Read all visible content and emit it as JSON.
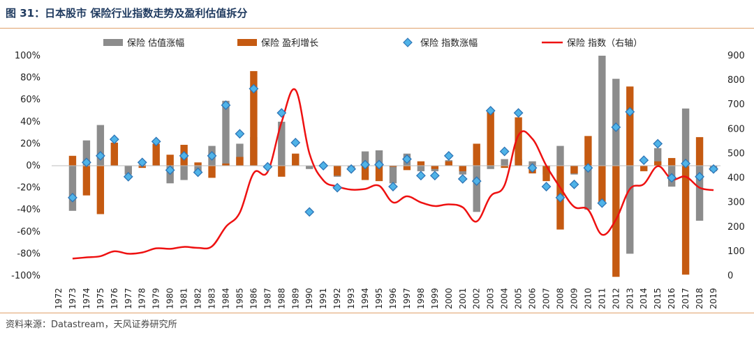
{
  "title": "图 31：日本股市 保险行业指数走势及盈利估值拆分",
  "source": "资料来源：Datastream，天风证券研究所",
  "colors": {
    "valuation": "#8c8c8c",
    "earnings": "#c55a11",
    "change_marker_fill": "#4fb3e8",
    "change_marker_stroke": "#2e75b6",
    "index_line": "#ee1111",
    "header_rule": "#e0a06a"
  },
  "chart_data": {
    "type": "bar",
    "title": "",
    "xlabel": "",
    "ylabel": "",
    "y_left_ticks": [
      "100%",
      "80%",
      "60%",
      "40%",
      "20%",
      "0%",
      "-20%",
      "-40%",
      "-60%",
      "-80%",
      "-100%"
    ],
    "y_right_ticks": [
      "900",
      "800",
      "700",
      "600",
      "500",
      "400",
      "300",
      "200",
      "100",
      "0"
    ],
    "ylim_left": [
      -100,
      100
    ],
    "ylim_right": [
      0,
      900
    ],
    "legend_position": "top",
    "categories": [
      "1972",
      "1973",
      "1974",
      "1975",
      "1976",
      "1977",
      "1978",
      "1979",
      "1980",
      "1981",
      "1982",
      "1983",
      "1984",
      "1985",
      "1986",
      "1987",
      "1988",
      "1989",
      "1990",
      "1991",
      "1992",
      "1993",
      "1994",
      "1995",
      "1996",
      "1997",
      "1998",
      "1999",
      "2000",
      "2001",
      "2002",
      "2003",
      "2004",
      "2005",
      "2006",
      "2007",
      "2008",
      "2009",
      "2010",
      "2011",
      "2012",
      "2013",
      "2014",
      "2015",
      "2016",
      "2017",
      "2018",
      "2019"
    ],
    "series": [
      {
        "name": "保险 估值涨幅",
        "kind": "bar",
        "axis": "left",
        "values": [
          null,
          -41,
          23,
          37,
          4,
          -8,
          1,
          2,
          -16,
          -13,
          -5,
          18,
          59,
          20,
          26,
          -2,
          40,
          10,
          -3,
          -1,
          -10,
          -2,
          13,
          14,
          -16,
          11,
          -5,
          -5,
          5,
          -8,
          -42,
          -3,
          6,
          6,
          4,
          -8,
          18,
          -8,
          -40,
          100,
          79,
          -80,
          0,
          16,
          -19,
          52,
          -50,
          -5
        ]
      },
      {
        "name": "保险 盈利增长",
        "kind": "bar",
        "axis": "left",
        "values": [
          null,
          9,
          -27,
          -44,
          21,
          0,
          -2,
          20,
          10,
          19,
          3,
          -11,
          2,
          8,
          86,
          0,
          -10,
          11,
          0,
          0,
          -9,
          0,
          -13,
          -14,
          -1,
          -4,
          4,
          -3,
          4,
          -5,
          20,
          49,
          -2,
          44,
          -7,
          -14,
          -58,
          -7,
          27,
          -35,
          -101,
          72,
          -5,
          4,
          7,
          -99,
          26,
          0
        ]
      },
      {
        "name": "保险 指数涨幅",
        "kind": "marker",
        "axis": "left",
        "values": [
          null,
          -29,
          3,
          9,
          24,
          -10,
          3,
          22,
          -4,
          9,
          -6,
          9,
          55,
          29,
          70,
          -1,
          48,
          21,
          -42,
          0,
          -20,
          -3,
          1,
          1,
          -19,
          6,
          -9,
          -9,
          9,
          -12,
          -14,
          50,
          13,
          48,
          -2,
          -19,
          -29,
          -17,
          -2,
          -34,
          35,
          49,
          5,
          20,
          -11,
          2,
          -10,
          -3
        ]
      },
      {
        "name": "保险 指数（右轴）",
        "kind": "line",
        "axis": "right",
        "values": [
          null,
          70,
          75,
          80,
          100,
          90,
          95,
          112,
          110,
          118,
          114,
          120,
          200,
          258,
          420,
          425,
          628,
          760,
          500,
          390,
          365,
          352,
          355,
          368,
          300,
          325,
          300,
          285,
          292,
          280,
          222,
          325,
          370,
          575,
          560,
          450,
          360,
          282,
          270,
          168,
          230,
          355,
          375,
          448,
          395,
          405,
          360,
          350
        ]
      }
    ]
  }
}
